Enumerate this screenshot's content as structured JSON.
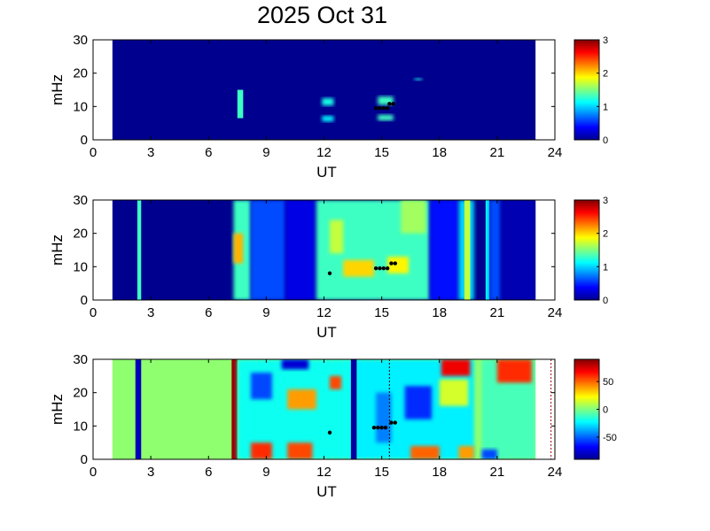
{
  "title": "2025 Oct 31",
  "chart_data": [
    {
      "type": "heatmap",
      "xlabel": "UT",
      "ylabel": "mHz",
      "xlim": [
        0,
        24
      ],
      "ylim": [
        0,
        30
      ],
      "xticks": [
        "0",
        "3",
        "6",
        "9",
        "12",
        "15",
        "18",
        "21",
        "24"
      ],
      "yticks": [
        "0",
        "10",
        "20",
        "30"
      ],
      "data_x_range": [
        1,
        23
      ],
      "background": "#00008f",
      "colorbar": {
        "min": 0,
        "max": 3,
        "ticks": [
          "0",
          "1",
          "2",
          "3"
        ]
      },
      "features": [
        {
          "x": [
            7.5,
            7.8
          ],
          "y": [
            6.5,
            15
          ],
          "value": 1.3
        },
        {
          "x": [
            11.9,
            12.5
          ],
          "y": [
            10.3,
            12.5
          ],
          "value": 1.2
        },
        {
          "x": [
            11.9,
            12.5
          ],
          "y": [
            5.5,
            7.2
          ],
          "value": 1.1
        },
        {
          "x": [
            14.8,
            15.6
          ],
          "y": [
            5.8,
            7.5
          ],
          "value": 1.3
        },
        {
          "x": [
            14.8,
            15.6
          ],
          "y": [
            10.5,
            13
          ],
          "value": 1.3
        },
        {
          "x": [
            16.7,
            17.1
          ],
          "y": [
            17.8,
            18.5
          ],
          "value": 1.2
        }
      ],
      "markers": [
        [
          14.7,
          9.5
        ],
        [
          14.9,
          9.5
        ],
        [
          15.1,
          9.5
        ],
        [
          15.3,
          9.5
        ],
        [
          15.4,
          10.8
        ],
        [
          15.6,
          10.8
        ]
      ]
    },
    {
      "type": "heatmap",
      "xlabel": "UT",
      "ylabel": "mHz",
      "xlim": [
        0,
        24
      ],
      "ylim": [
        0,
        30
      ],
      "xticks": [
        "0",
        "3",
        "6",
        "9",
        "12",
        "15",
        "18",
        "21",
        "24"
      ],
      "yticks": [
        "0",
        "10",
        "20",
        "30"
      ],
      "data_x_range": [
        1,
        23
      ],
      "background": "#00008f",
      "colorbar": {
        "min": 0,
        "max": 3,
        "ticks": [
          "0",
          "1",
          "2",
          "3"
        ]
      },
      "features": [
        {
          "x": [
            2.3,
            2.5
          ],
          "y": [
            0,
            30
          ],
          "value": 1.3
        },
        {
          "x": [
            7.3,
            8.2
          ],
          "y": [
            0,
            30
          ],
          "value": 1.3
        },
        {
          "x": [
            8.2,
            10.0
          ],
          "y": [
            0,
            30
          ],
          "value": 0.6
        },
        {
          "x": [
            7.3,
            7.8
          ],
          "y": [
            11,
            20
          ],
          "value": 2.1
        },
        {
          "x": [
            10.0,
            11.6
          ],
          "y": [
            0,
            30
          ],
          "value": 0.3
        },
        {
          "x": [
            11.6,
            17.5
          ],
          "y": [
            0,
            30
          ],
          "value": 1.3
        },
        {
          "x": [
            12.3,
            13.0
          ],
          "y": [
            14,
            24
          ],
          "value": 1.7
        },
        {
          "x": [
            13.0,
            14.6
          ],
          "y": [
            7,
            12
          ],
          "value": 2.0
        },
        {
          "x": [
            15.3,
            16.4
          ],
          "y": [
            8,
            13
          ],
          "value": 1.9
        },
        {
          "x": [
            16.0,
            17.3
          ],
          "y": [
            20,
            30
          ],
          "value": 1.6
        },
        {
          "x": [
            17.5,
            19.0
          ],
          "y": [
            0,
            30
          ],
          "value": 0.4
        },
        {
          "x": [
            19.0,
            19.8
          ],
          "y": [
            0,
            30
          ],
          "value": 1.0
        },
        {
          "x": [
            19.3,
            19.6
          ],
          "y": [
            0,
            30
          ],
          "value": 1.7
        },
        {
          "x": [
            20.4,
            20.6
          ],
          "y": [
            0,
            30
          ],
          "value": 1.1
        },
        {
          "x": [
            20.6,
            21.2
          ],
          "y": [
            0,
            30
          ],
          "value": 0.6
        },
        {
          "x": [
            21.2,
            23.0
          ],
          "y": [
            0,
            30
          ],
          "value": 0.15
        }
      ],
      "markers": [
        [
          12.3,
          8
        ],
        [
          14.7,
          9.5
        ],
        [
          14.9,
          9.5
        ],
        [
          15.1,
          9.5
        ],
        [
          15.3,
          9.5
        ],
        [
          15.5,
          11
        ],
        [
          15.7,
          11
        ]
      ]
    },
    {
      "type": "heatmap",
      "xlabel": "UT",
      "ylabel": "mHz",
      "xlim": [
        0,
        24
      ],
      "ylim": [
        0,
        30
      ],
      "xticks": [
        "0",
        "3",
        "6",
        "9",
        "12",
        "15",
        "18",
        "21",
        "24"
      ],
      "yticks": [
        "0",
        "10",
        "20",
        "30"
      ],
      "data_x_range": [
        1,
        23
      ],
      "background": "#8fff70",
      "colorbar": {
        "min": -90,
        "max": 90,
        "ticks": [
          "50",
          "0",
          "-50"
        ],
        "tick_values": [
          50,
          0,
          -50
        ]
      },
      "features": [
        {
          "x": [
            2.2,
            2.5
          ],
          "y": [
            0,
            30
          ],
          "value": -80
        },
        {
          "x": [
            7.2,
            7.5
          ],
          "y": [
            0,
            30
          ],
          "value": 85
        },
        {
          "x": [
            7.5,
            13.6
          ],
          "y": [
            0,
            30
          ],
          "value": -20
        },
        {
          "x": [
            13.6,
            19.8
          ],
          "y": [
            0,
            30
          ],
          "value": -25
        },
        {
          "x": [
            20.2,
            23.0
          ],
          "y": [
            0,
            30
          ],
          "value": -10
        },
        {
          "x": [
            8.2,
            9.3
          ],
          "y": [
            18,
            26
          ],
          "value": -55
        },
        {
          "x": [
            9.8,
            11.2
          ],
          "y": [
            27,
            30
          ],
          "value": -75
        },
        {
          "x": [
            10.1,
            11.6
          ],
          "y": [
            15,
            21
          ],
          "value": 40
        },
        {
          "x": [
            12.3,
            12.9
          ],
          "y": [
            21,
            25
          ],
          "value": 55
        },
        {
          "x": [
            8.2,
            9.3
          ],
          "y": [
            0,
            5
          ],
          "value": 60
        },
        {
          "x": [
            10.1,
            11.4
          ],
          "y": [
            0,
            5
          ],
          "value": 55
        },
        {
          "x": [
            13.4,
            13.7
          ],
          "y": [
            0,
            30
          ],
          "value": -85
        },
        {
          "x": [
            16.2,
            17.6
          ],
          "y": [
            12,
            22
          ],
          "value": -60
        },
        {
          "x": [
            14.7,
            15.5
          ],
          "y": [
            5,
            20
          ],
          "value": -45
        },
        {
          "x": [
            18.1,
            19.6
          ],
          "y": [
            25,
            30
          ],
          "value": 70
        },
        {
          "x": [
            18.0,
            19.5
          ],
          "y": [
            16,
            24
          ],
          "value": 15
        },
        {
          "x": [
            21.0,
            22.8
          ],
          "y": [
            23,
            30
          ],
          "value": 60
        },
        {
          "x": [
            16.5,
            18.0
          ],
          "y": [
            0,
            4
          ],
          "value": 50
        },
        {
          "x": [
            19.0,
            19.8
          ],
          "y": [
            0,
            4
          ],
          "value": 40
        },
        {
          "x": [
            20.2,
            21.0
          ],
          "y": [
            0,
            3
          ],
          "value": -55
        }
      ],
      "markers": [
        [
          12.3,
          8
        ],
        [
          14.6,
          9.5
        ],
        [
          14.8,
          9.5
        ],
        [
          15.0,
          9.5
        ],
        [
          15.2,
          9.5
        ],
        [
          15.5,
          11
        ],
        [
          15.7,
          11
        ]
      ],
      "dotted_lines": [
        15.4,
        23.8
      ]
    }
  ]
}
